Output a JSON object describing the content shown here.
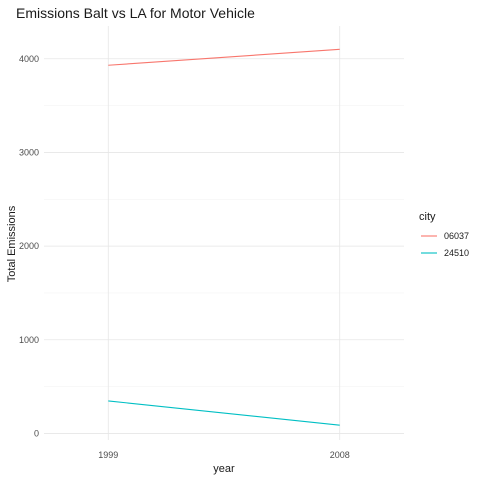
{
  "chart_data": {
    "type": "line",
    "title": "Emissions Balt vs LA for Motor Vehicle",
    "xlabel": "year",
    "ylabel": "Total Emissions",
    "x": [
      1999,
      2008
    ],
    "xlim": [
      1996.5,
      2010.5
    ],
    "ylim": [
      -70,
      4350
    ],
    "yticks": [
      0,
      1000,
      2000,
      3000,
      4000
    ],
    "xticks": [
      1999,
      2008
    ],
    "grid": true,
    "legend": {
      "title": "city",
      "placement": "right"
    },
    "series": [
      {
        "name": "06037",
        "color": "#F8766D",
        "values": [
          3931,
          4101
        ]
      },
      {
        "name": "24510",
        "color": "#00BFC4",
        "values": [
          347,
          88
        ]
      }
    ]
  }
}
